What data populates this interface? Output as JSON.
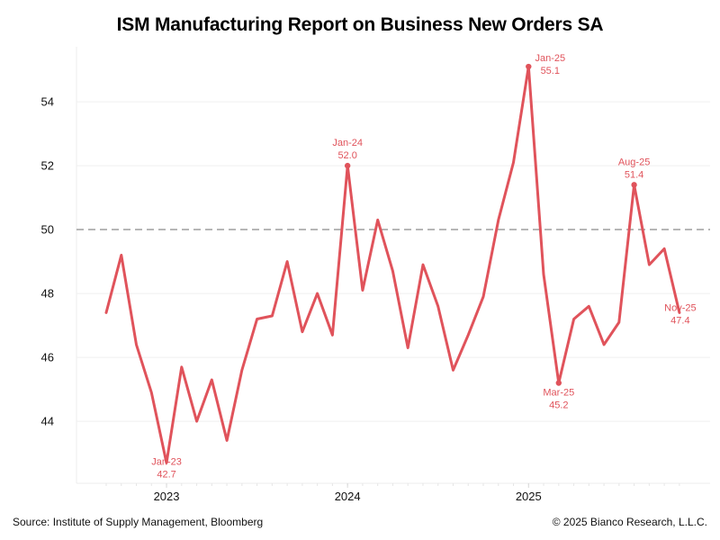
{
  "chart_data": {
    "type": "line",
    "title": "ISM Manufacturing Report on Business New Orders SA",
    "xlabel": "",
    "ylabel": "",
    "x": [
      "Sep-22",
      "Oct-22",
      "Nov-22",
      "Dec-22",
      "Jan-23",
      "Feb-23",
      "Mar-23",
      "Apr-23",
      "May-23",
      "Jun-23",
      "Jul-23",
      "Aug-23",
      "Sep-23",
      "Oct-23",
      "Nov-23",
      "Dec-23",
      "Jan-24",
      "Feb-24",
      "Mar-24",
      "Apr-24",
      "May-24",
      "Jun-24",
      "Jul-24",
      "Aug-24",
      "Sep-24",
      "Oct-24",
      "Nov-24",
      "Dec-24",
      "Jan-25",
      "Feb-25",
      "Mar-25",
      "Apr-25",
      "May-25",
      "Jun-25",
      "Jul-25",
      "Aug-25",
      "Sep-25",
      "Oct-25",
      "Nov-25"
    ],
    "series": [
      {
        "name": "ISM New Orders SA",
        "color": "#e0535b",
        "values": [
          47.4,
          49.2,
          46.4,
          44.9,
          42.7,
          45.7,
          44.0,
          45.3,
          43.4,
          45.6,
          47.2,
          47.3,
          49.0,
          46.8,
          48.0,
          46.7,
          52.0,
          48.1,
          50.3,
          48.7,
          46.3,
          48.9,
          47.6,
          45.6,
          46.7,
          47.9,
          50.3,
          52.1,
          55.1,
          48.6,
          45.2,
          47.2,
          47.6,
          46.4,
          47.1,
          51.4,
          48.9,
          49.4,
          47.4
        ]
      }
    ],
    "xticks": [
      {
        "label": "2023",
        "at": "Jan-23"
      },
      {
        "label": "2024",
        "at": "Jan-24"
      },
      {
        "label": "2025",
        "at": "Jan-25"
      }
    ],
    "yticks": [
      44,
      46,
      48,
      50,
      52,
      54
    ],
    "ylim": [
      42.06,
      55.72
    ],
    "grid": true,
    "reference_line": {
      "value": 50,
      "style": "dashed",
      "color": "#a6a6a6"
    },
    "annotations": [
      {
        "x": "Jan-23",
        "label": "Jan-23",
        "value": "42.7",
        "position": "below"
      },
      {
        "x": "Jan-24",
        "label": "Jan-24",
        "value": "52.0",
        "position": "above"
      },
      {
        "x": "Jan-25",
        "label": "Jan-25",
        "value": "55.1",
        "position": "right"
      },
      {
        "x": "Mar-25",
        "label": "Mar-25",
        "value": "45.2",
        "position": "below"
      },
      {
        "x": "Aug-25",
        "label": "Aug-25",
        "value": "51.4",
        "position": "above"
      },
      {
        "x": "Nov-25",
        "label": "Nov-25",
        "value": "47.4",
        "position": "below"
      }
    ],
    "legend": "none"
  },
  "footer": {
    "source": "Source: Institute of Supply Management, Bloomberg",
    "copyright": "© 2025 Bianco Research, L.L.C."
  }
}
